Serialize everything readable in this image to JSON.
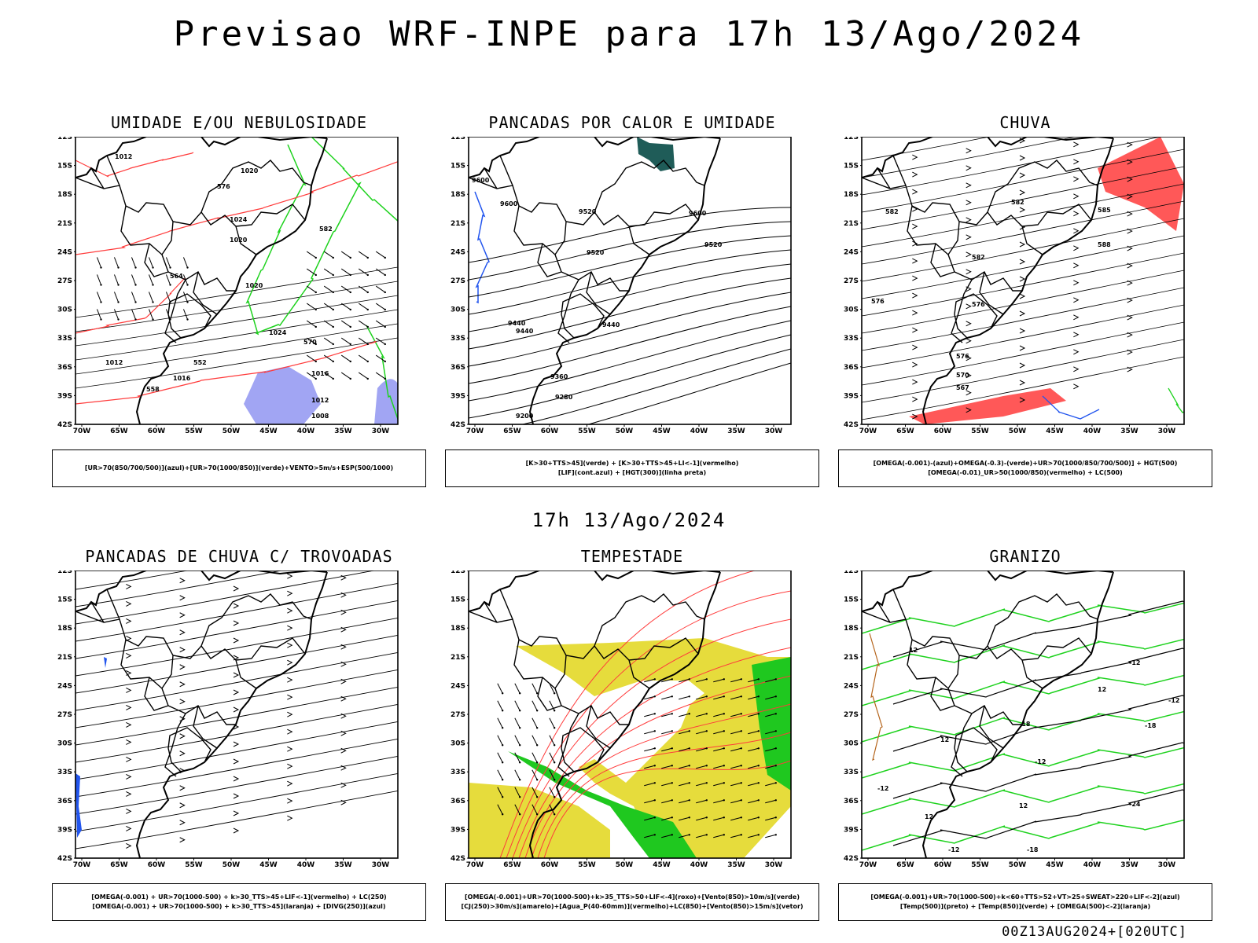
{
  "header": {
    "title": "Previsao WRF-INPE  para 17h 13/Ago/2024"
  },
  "mid_title": "17h 13/Ago/2024",
  "footer": {
    "stamp": "00Z13AUG2024+[020UTC]"
  },
  "axes": {
    "lat_labels": [
      "12S",
      "15S",
      "18S",
      "21S",
      "24S",
      "27S",
      "30S",
      "33S",
      "36S",
      "39S",
      "42S"
    ],
    "lon_labels": [
      "70W",
      "65W",
      "60W",
      "55W",
      "50W",
      "45W",
      "40W",
      "35W",
      "30W"
    ]
  },
  "panels": [
    {
      "title": "UMIDADE E/OU NEBULOSIDADE",
      "legend": [
        "[UR>70(850/700/500)](azul)+[UR>70(1000/850)](verde)+VENTO>5m/s+ESP(500/1000)"
      ],
      "contour_labels": [
        "1012",
        "1012",
        "1016",
        "1020",
        "1020",
        "1020",
        "1024",
        "1016",
        "1012",
        "1008",
        "1024",
        "570",
        "576",
        "564",
        "582",
        "558",
        "552"
      ]
    },
    {
      "title": "PANCADAS POR CALOR E UMIDADE",
      "legend": [
        "[K>30+TTS>45](verde) + [K>30+TTS>45+LI<-1](vermelho)",
        "[LIF](cont.azul) + [HGT(300)](linha preta)"
      ],
      "contour_labels": [
        "9600",
        "9520",
        "9600",
        "9600",
        "9440",
        "9520",
        "9520",
        "9440",
        "9440",
        "9360",
        "9280",
        "9200"
      ]
    },
    {
      "title": "CHUVA",
      "legend": [
        "[OMEGA(-0.001)-(azul)+OMEGA(-0.3)-(verde)+UR>70(1000/850/700/500)] + HGT(500)",
        "[OMEGA(-0.01)_UR>50(1000/850)(vermelho) + LC(500)"
      ],
      "contour_labels": [
        "582",
        "582",
        "582",
        "576",
        "576",
        "576",
        "570",
        "567",
        "588",
        "585"
      ]
    },
    {
      "title": "PANCADAS DE CHUVA C/ TROVOADAS",
      "legend": [
        "[OMEGA(-0.001) + UR>70(1000-500) + k>30_TTS>45+LIF<-1](vermelho) + LC(250)",
        "[OMEGA(-0.001) + UR>70(1000-500) + k>30_TTS>45](laranja) + [DIVG(250)](azul)"
      ],
      "contour_labels": []
    },
    {
      "title": "TEMPESTADE",
      "legend": [
        "[OMEGA(-0.001)+UR>70(1000-500)+k>35_TTS>50+LIF<-4](roxo)+[Vento(850)>10m/s](verde)",
        "[CJ(250)>30m/s](amarelo)+[Agua_P(40-60mm)](vermelho)+LC(850)+[Vento(850)>15m/s](vetor)"
      ],
      "contour_labels": []
    },
    {
      "title": "GRANIZO",
      "legend": [
        "[OMEGA(-0.001)+UR>70(1000-500)+k<60+TTS>52+VT>25+SWEAT>220+LIF<-2](azul)",
        "[Temp(500)](preto) + [Temp(850)](verde) + [OMEGA(500)<-2](laranja)"
      ],
      "contour_labels": [
        "-12",
        "-12",
        "-12",
        "-18",
        "-18",
        "-18",
        "-12",
        "-24",
        "12",
        "12",
        "12",
        "12",
        "12",
        "-12"
      ]
    }
  ],
  "colors": {
    "coast": "#000000",
    "blue_field": "#8a8ff0",
    "green_contour": "#1ed21e",
    "red_contour": "#ff3b3b",
    "yellow_field": "#e6dc3c",
    "green_field": "#1fc81f",
    "teal_field": "#1f5c58",
    "blue_contour": "#2255ee",
    "brown_contour": "#b5651d"
  }
}
